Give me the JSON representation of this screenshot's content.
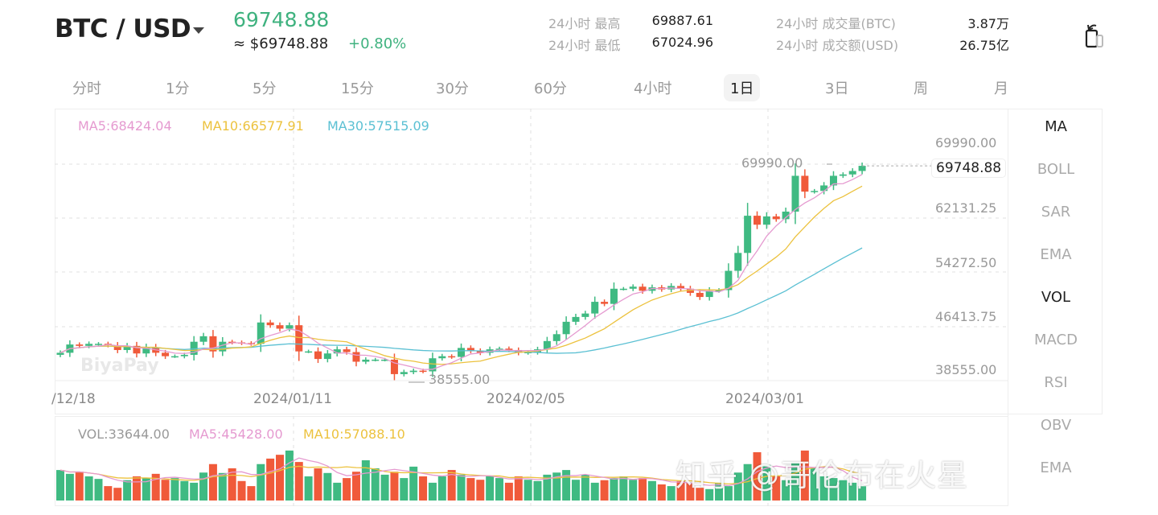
{
  "header": {
    "pair": "BTC / USD",
    "price": "69748.88",
    "usd_price": "≈ $69748.88",
    "change": "+0.80%",
    "stats": [
      {
        "label": "24小时 最高",
        "value": "69887.61"
      },
      {
        "label": "24小时 最低",
        "value": "67024.96"
      },
      {
        "label": "24小时 成交量(BTC)",
        "value": "3.87万"
      },
      {
        "label": "24小时 成交额(USD)",
        "value": "26.75亿"
      }
    ],
    "rotate_icon": "rotate-screen-icon"
  },
  "tabs": [
    {
      "label": "分时"
    },
    {
      "label": "1分"
    },
    {
      "label": "5分"
    },
    {
      "label": "15分"
    },
    {
      "label": "30分"
    },
    {
      "label": "60分"
    },
    {
      "label": "4小时"
    },
    {
      "label": "1日",
      "active": true
    },
    {
      "label": "3日"
    },
    {
      "label": "周"
    },
    {
      "label": "月"
    }
  ],
  "indicators": [
    "MA",
    "BOLL",
    "SAR",
    "EMA",
    "VOL",
    "MACD",
    "RSI",
    "OBV",
    "EMA"
  ],
  "active_indicators": [
    "MA",
    "VOL"
  ],
  "legend": {
    "ma5": "MA5:68424.04",
    "ma10": "MA10:66577.91",
    "ma30": "MA30:57515.09",
    "vol": "VOL:33644.00",
    "vol_ma5": "MA5:45428.00",
    "vol_ma10": "MA10:57088.10"
  },
  "colors": {
    "up": "#3fba82",
    "down": "#f05a3a",
    "ma5": "#e59ad0",
    "ma10": "#ecc23e",
    "ma30": "#5bc0d3"
  },
  "watermarks": {
    "zhihu": "知乎 @哥伦布在火星",
    "logo": "BiyaPay"
  },
  "chart_data": {
    "type": "candlestick",
    "y_ticks": [
      "69990.00",
      "62131.25",
      "54272.50",
      "46413.75",
      "38555.00"
    ],
    "x_ticks": [
      "/12/18",
      "2024/01/11",
      "2024/02/05",
      "2024/03/01"
    ],
    "ylim": [
      38555,
      69990
    ],
    "current_price": "69748.88",
    "max_label": "69990.00",
    "min_label": "38555.00",
    "start_date": "2023-12-18",
    "closes": [
      42600,
      43800,
      43600,
      43900,
      43900,
      43700,
      43000,
      43600,
      42500,
      43400,
      42600,
      42100,
      42100,
      42300,
      44200,
      45000,
      42800,
      44200,
      44100,
      44000,
      43900,
      47000,
      46600,
      46100,
      46600,
      42800,
      42800,
      41700,
      42500,
      43100,
      42700,
      41300,
      41600,
      41600,
      41600,
      39500,
      39800,
      40000,
      39900,
      41800,
      42100,
      42000,
      43300,
      42900,
      42600,
      43100,
      43200,
      43000,
      42600,
      42700,
      43100,
      44300,
      45300,
      47100,
      47800,
      48300,
      50000,
      49700,
      51900,
      51900,
      52200,
      51600,
      52100,
      51800,
      52300,
      51900,
      51300,
      50700,
      51600,
      51700,
      54500,
      57100,
      62500,
      61200,
      62400,
      62000,
      63100,
      68300,
      66000,
      66100,
      66900,
      68300,
      68500,
      69000,
      69748.88
    ],
    "volumes": [
      72000,
      63000,
      68000,
      57000,
      51000,
      34000,
      30000,
      48000,
      57000,
      53000,
      63000,
      49000,
      53000,
      46000,
      42000,
      66000,
      86000,
      65000,
      76000,
      46000,
      34000,
      86000,
      99000,
      108000,
      118000,
      91000,
      57000,
      76000,
      65000,
      42000,
      53000,
      68000,
      95000,
      76000,
      61000,
      68000,
      53000,
      80000,
      57000,
      42000,
      57000,
      72000,
      61000,
      53000,
      49000,
      57000,
      53000,
      42000,
      57000,
      49000,
      46000,
      61000,
      66000,
      72000,
      49000,
      61000,
      42000,
      48000,
      53000,
      57000,
      49000,
      53000,
      46000,
      38000,
      34000,
      46000,
      42000,
      30000,
      27000,
      42000,
      34000,
      66000,
      86000,
      114000,
      84000,
      57000,
      48000,
      91000,
      118000,
      76000,
      57000,
      53000,
      48000,
      42000,
      33644
    ]
  }
}
